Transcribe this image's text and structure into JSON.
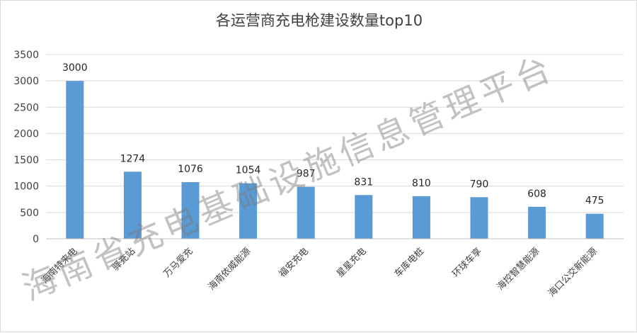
{
  "chart_data": {
    "type": "bar",
    "title": "各运营商充电枪建设数量top10",
    "categories": [
      "海南特来电",
      "驿充站",
      "万马爱充",
      "海南依威能源",
      "福安充电",
      "星星充电",
      "车库电桩",
      "环球车享",
      "海控智慧能源",
      "海口公交新能源"
    ],
    "series": [
      {
        "values": [
          3000,
          1274,
          1076,
          1054,
          987,
          831,
          810,
          790,
          608,
          475
        ]
      }
    ],
    "ylim": [
      0,
      3500
    ],
    "yticks": [
      0,
      500,
      1000,
      1500,
      2000,
      2500,
      3000,
      3500
    ],
    "grid": true,
    "data_labels": true,
    "bar_color": "#5b9bd5"
  },
  "watermark": "海南省充电基础设施信息管理平台"
}
